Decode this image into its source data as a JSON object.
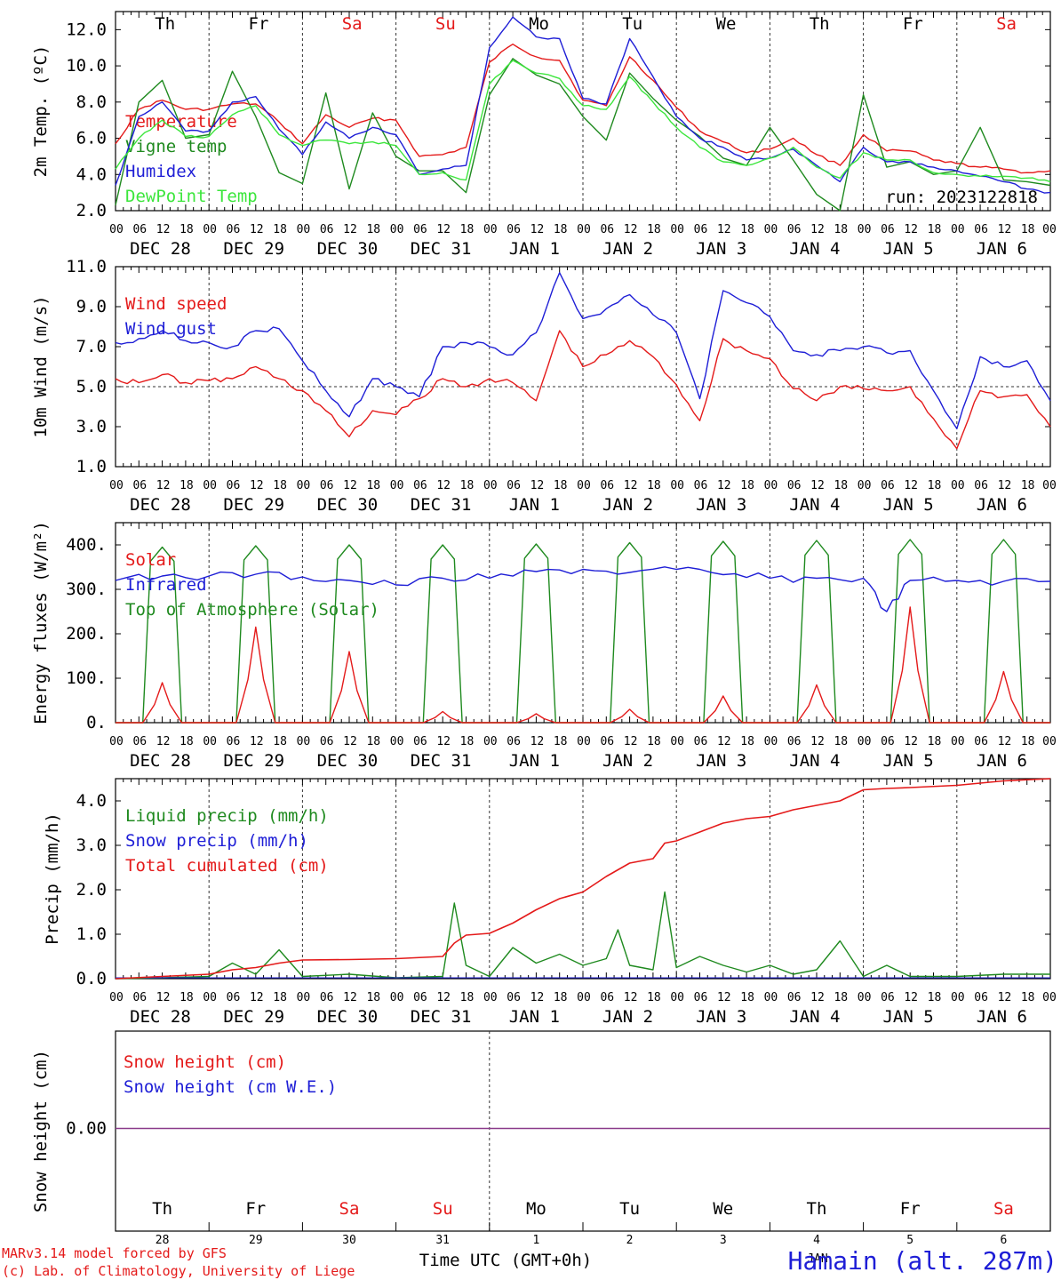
{
  "footer": {
    "credit_line1": "MARv3.14 model forced by GFS",
    "credit_line2": "(c) Lab. of Climatology, University of Liege",
    "xlabel": "Time UTC (GMT+0h)",
    "station": "Hamain (alt. 287m)",
    "month_label": "JAN"
  },
  "colors": {
    "red": "#e41a1a",
    "green": "#1f8a1f",
    "blue": "#1e1ed6",
    "lightgreen": "#3ce63c",
    "purple": "#8a3a8a",
    "grid": "#333333"
  },
  "chart_data": [
    {
      "type": "line",
      "ylabel": "2m Temp. (ºC)",
      "ylim": [
        2.0,
        13.0
      ],
      "yticks": [
        "12.0",
        "10.0",
        "8.0",
        "6.0",
        "4.0",
        "2.0"
      ],
      "weekdays": [
        "Th",
        "Fr",
        "Sa",
        "Su",
        "Mo",
        "Tu",
        "We",
        "Th",
        "Fr",
        "Sa"
      ],
      "weekend": [
        false,
        false,
        true,
        true,
        false,
        false,
        false,
        false,
        false,
        true
      ],
      "hour_ticks": [
        "00",
        "06",
        "12",
        "18"
      ],
      "date_labels": [
        "DEC 28",
        "DEC 29",
        "DEC 30",
        "DEC 31",
        "JAN  1",
        "JAN  2",
        "JAN  3",
        "JAN  4",
        "JAN  5",
        "JAN  6"
      ],
      "annotation": "run: 2023122818",
      "x_hours": [
        0,
        6,
        12,
        18,
        24,
        30,
        36,
        42,
        48,
        54,
        60,
        66,
        72,
        78,
        84,
        90,
        96,
        102,
        108,
        114,
        120,
        126,
        132,
        138,
        144,
        150,
        156,
        162,
        168,
        174,
        180,
        186,
        192,
        198,
        204,
        210,
        216,
        222,
        228,
        234,
        240
      ],
      "series": [
        {
          "name": "Temperature",
          "color": "red",
          "values": [
            5.7,
            7.6,
            8.1,
            7.6,
            7.6,
            7.9,
            7.9,
            6.9,
            5.7,
            7.3,
            6.6,
            7.1,
            7.0,
            5.0,
            5.1,
            5.5,
            10.2,
            11.2,
            10.5,
            10.3,
            8.1,
            7.8,
            10.5,
            9.2,
            7.7,
            6.4,
            5.8,
            5.2,
            5.4,
            6.0,
            5.1,
            4.5,
            6.2,
            5.3,
            5.3,
            4.8,
            4.6,
            4.4,
            4.3,
            4.1,
            4.2
          ]
        },
        {
          "name": "Vigne temp",
          "color": "green",
          "values": [
            2.3,
            8.0,
            9.2,
            6.0,
            6.2,
            9.7,
            7.2,
            4.1,
            3.5,
            8.5,
            3.2,
            7.4,
            5.0,
            4.2,
            4.2,
            3.0,
            8.4,
            10.4,
            9.5,
            9.0,
            7.2,
            5.9,
            9.6,
            8.2,
            7.0,
            6.1,
            4.9,
            4.5,
            6.6,
            4.8,
            2.9,
            2.0,
            8.4,
            4.4,
            4.7,
            4.0,
            4.2,
            6.6,
            3.7,
            3.6,
            3.4
          ]
        },
        {
          "name": "Humidex",
          "color": "blue",
          "values": [
            3.4,
            7.2,
            8.0,
            6.4,
            6.4,
            8.0,
            8.3,
            6.5,
            5.1,
            6.9,
            6.0,
            6.6,
            6.2,
            4.0,
            4.3,
            4.5,
            11.0,
            12.7,
            11.6,
            11.5,
            8.2,
            7.9,
            11.5,
            9.4,
            7.2,
            6.0,
            5.5,
            4.8,
            4.9,
            5.4,
            4.5,
            3.6,
            5.5,
            4.7,
            4.7,
            4.4,
            4.2,
            3.9,
            3.6,
            3.2,
            3.0
          ]
        },
        {
          "name": "DewPoint Temp",
          "color": "lightgreen",
          "values": [
            4.3,
            6.0,
            7.0,
            6.1,
            6.1,
            7.3,
            7.8,
            6.2,
            5.6,
            5.9,
            5.7,
            5.8,
            5.6,
            4.0,
            4.1,
            3.7,
            9.0,
            10.3,
            9.6,
            9.3,
            7.8,
            7.6,
            9.4,
            8.0,
            6.6,
            5.5,
            4.7,
            4.5,
            4.9,
            5.5,
            4.4,
            3.8,
            5.2,
            4.8,
            4.8,
            4.1,
            4.0,
            3.9,
            3.9,
            3.8,
            3.6
          ]
        }
      ]
    },
    {
      "type": "line",
      "ylabel": "10m Wind (m/s)",
      "ylim": [
        1.0,
        11.0
      ],
      "yticks": [
        "11.0",
        "9.0",
        "7.0",
        "5.0",
        "3.0",
        "1.0"
      ],
      "reference_line": 5.0,
      "hour_ticks": [
        "00",
        "06",
        "12",
        "18"
      ],
      "date_labels": [
        "DEC 28",
        "DEC 29",
        "DEC 30",
        "DEC 31",
        "JAN  1",
        "JAN  2",
        "JAN  3",
        "JAN  4",
        "JAN  5",
        "JAN  6"
      ],
      "x_hours": [
        0,
        6,
        12,
        18,
        24,
        30,
        36,
        42,
        48,
        54,
        60,
        66,
        72,
        78,
        84,
        90,
        96,
        102,
        108,
        114,
        120,
        126,
        132,
        138,
        144,
        150,
        156,
        162,
        168,
        174,
        180,
        186,
        192,
        198,
        204,
        210,
        216,
        222,
        228,
        234,
        240
      ],
      "series": [
        {
          "name": "Wind speed",
          "color": "red",
          "values": [
            5.4,
            5.2,
            5.6,
            5.2,
            5.3,
            5.4,
            6.0,
            5.4,
            4.8,
            3.8,
            2.5,
            3.8,
            3.6,
            4.4,
            5.4,
            5.0,
            5.4,
            5.2,
            4.3,
            7.8,
            6.0,
            6.6,
            7.3,
            6.5,
            5.1,
            3.3,
            7.4,
            6.8,
            6.4,
            4.9,
            4.3,
            5.0,
            4.9,
            4.8,
            5.0,
            3.4,
            1.9,
            4.8,
            4.5,
            4.6,
            3.0
          ]
        },
        {
          "name": "Wind gust",
          "color": "blue",
          "values": [
            7.2,
            7.4,
            7.8,
            7.3,
            7.2,
            7.0,
            7.8,
            7.9,
            6.3,
            4.8,
            3.5,
            5.4,
            5.0,
            4.5,
            7.0,
            7.2,
            7.0,
            6.6,
            7.7,
            10.7,
            8.4,
            8.9,
            9.6,
            8.6,
            7.7,
            4.4,
            9.8,
            9.2,
            8.5,
            6.8,
            6.6,
            6.8,
            7.0,
            6.7,
            6.8,
            4.8,
            2.9,
            6.5,
            6.0,
            6.3,
            4.3
          ]
        }
      ]
    },
    {
      "type": "line",
      "ylabel": "Energy fluxes (W/m²)",
      "ylim": [
        0,
        420
      ],
      "yticks": [
        "400.",
        "300.",
        "200.",
        "100.",
        "0."
      ],
      "hour_ticks": [
        "00",
        "06",
        "12",
        "18"
      ],
      "date_labels": [
        "DEC 28",
        "DEC 29",
        "DEC 30",
        "DEC 31",
        "JAN  1",
        "JAN  2",
        "JAN  3",
        "JAN  4",
        "JAN  5",
        "JAN  6"
      ],
      "series": [
        {
          "name": "Solar",
          "color": "red",
          "day_peaks": [
            90,
            215,
            160,
            25,
            20,
            30,
            60,
            85,
            260,
            115
          ]
        },
        {
          "name": "Infrared",
          "color": "blue",
          "x_hours": [
            0,
            12,
            24,
            36,
            48,
            60,
            72,
            84,
            96,
            108,
            120,
            132,
            144,
            156,
            168,
            180,
            192,
            198,
            204,
            216,
            228,
            240
          ],
          "values": [
            320,
            330,
            330,
            334,
            328,
            320,
            310,
            325,
            325,
            340,
            345,
            338,
            345,
            333,
            325,
            325,
            325,
            250,
            320,
            320,
            318,
            318
          ]
        },
        {
          "name": "Top of Atmosphere (Solar)",
          "color": "green",
          "day_peaks": [
            395,
            398,
            400,
            400,
            402,
            405,
            408,
            410,
            412,
            412
          ]
        }
      ]
    },
    {
      "type": "line",
      "ylabel": "Precip (mm/h)",
      "ylim": [
        0,
        4.5
      ],
      "yticks": [
        "4.0",
        "3.0",
        "2.0",
        "1.0",
        "0.0"
      ],
      "hour_ticks": [
        "00",
        "06",
        "12",
        "18"
      ],
      "date_labels": [
        "DEC 28",
        "DEC 29",
        "DEC 30",
        "DEC 31",
        "JAN  1",
        "JAN  2",
        "JAN  3",
        "JAN  4",
        "JAN  5",
        "JAN  6"
      ],
      "series": [
        {
          "name": "Liquid precip (mm/h)",
          "color": "green",
          "x_hours": [
            0,
            12,
            24,
            30,
            36,
            42,
            48,
            60,
            72,
            84,
            87,
            90,
            96,
            102,
            108,
            114,
            120,
            126,
            129,
            132,
            138,
            141,
            144,
            150,
            156,
            162,
            168,
            174,
            180,
            186,
            192,
            198,
            204,
            216,
            228,
            240
          ],
          "values": [
            0,
            0.02,
            0.05,
            0.35,
            0.1,
            0.65,
            0.05,
            0.1,
            0.02,
            0.05,
            1.7,
            0.3,
            0.05,
            0.7,
            0.35,
            0.55,
            0.3,
            0.45,
            1.1,
            0.3,
            0.2,
            1.95,
            0.25,
            0.5,
            0.3,
            0.15,
            0.3,
            0.1,
            0.2,
            0.85,
            0.05,
            0.3,
            0.05,
            0.05,
            0.1,
            0.1
          ]
        },
        {
          "name": "Snow precip (mm/h)",
          "color": "blue",
          "values": []
        },
        {
          "name": "Total cumulated (cm)",
          "color": "red",
          "x_hours": [
            0,
            12,
            24,
            30,
            36,
            42,
            48,
            60,
            72,
            84,
            87,
            90,
            96,
            102,
            108,
            114,
            120,
            126,
            132,
            138,
            141,
            144,
            150,
            156,
            162,
            168,
            174,
            180,
            186,
            192,
            198,
            204,
            216,
            228,
            240
          ],
          "values": [
            0,
            0.05,
            0.1,
            0.2,
            0.25,
            0.35,
            0.42,
            0.43,
            0.45,
            0.5,
            0.8,
            0.98,
            1.02,
            1.25,
            1.55,
            1.8,
            1.95,
            2.3,
            2.6,
            2.7,
            3.05,
            3.1,
            3.3,
            3.5,
            3.6,
            3.65,
            3.8,
            3.9,
            4.0,
            4.25,
            4.28,
            4.3,
            4.35,
            4.45,
            4.5
          ]
        }
      ]
    },
    {
      "type": "line",
      "ylabel": "Snow height (cm)",
      "ylim": [
        -1,
        1
      ],
      "yticks": [
        "0.00"
      ],
      "weekdays": [
        "Th",
        "Fr",
        "Sa",
        "Su",
        "Mo",
        "Tu",
        "We",
        "Th",
        "Fr",
        "Sa"
      ],
      "weekend": [
        false,
        false,
        true,
        true,
        false,
        false,
        false,
        false,
        false,
        true
      ],
      "day_numbers": [
        "28",
        "29",
        "30",
        "31",
        "1",
        "2",
        "3",
        "4",
        "5",
        "6"
      ],
      "series": [
        {
          "name": "Snow height (cm)",
          "color": "red",
          "values": [
            0,
            0
          ]
        },
        {
          "name": "Snow height (cm W.E.)",
          "color": "blue",
          "values": [
            0,
            0
          ]
        }
      ]
    }
  ]
}
